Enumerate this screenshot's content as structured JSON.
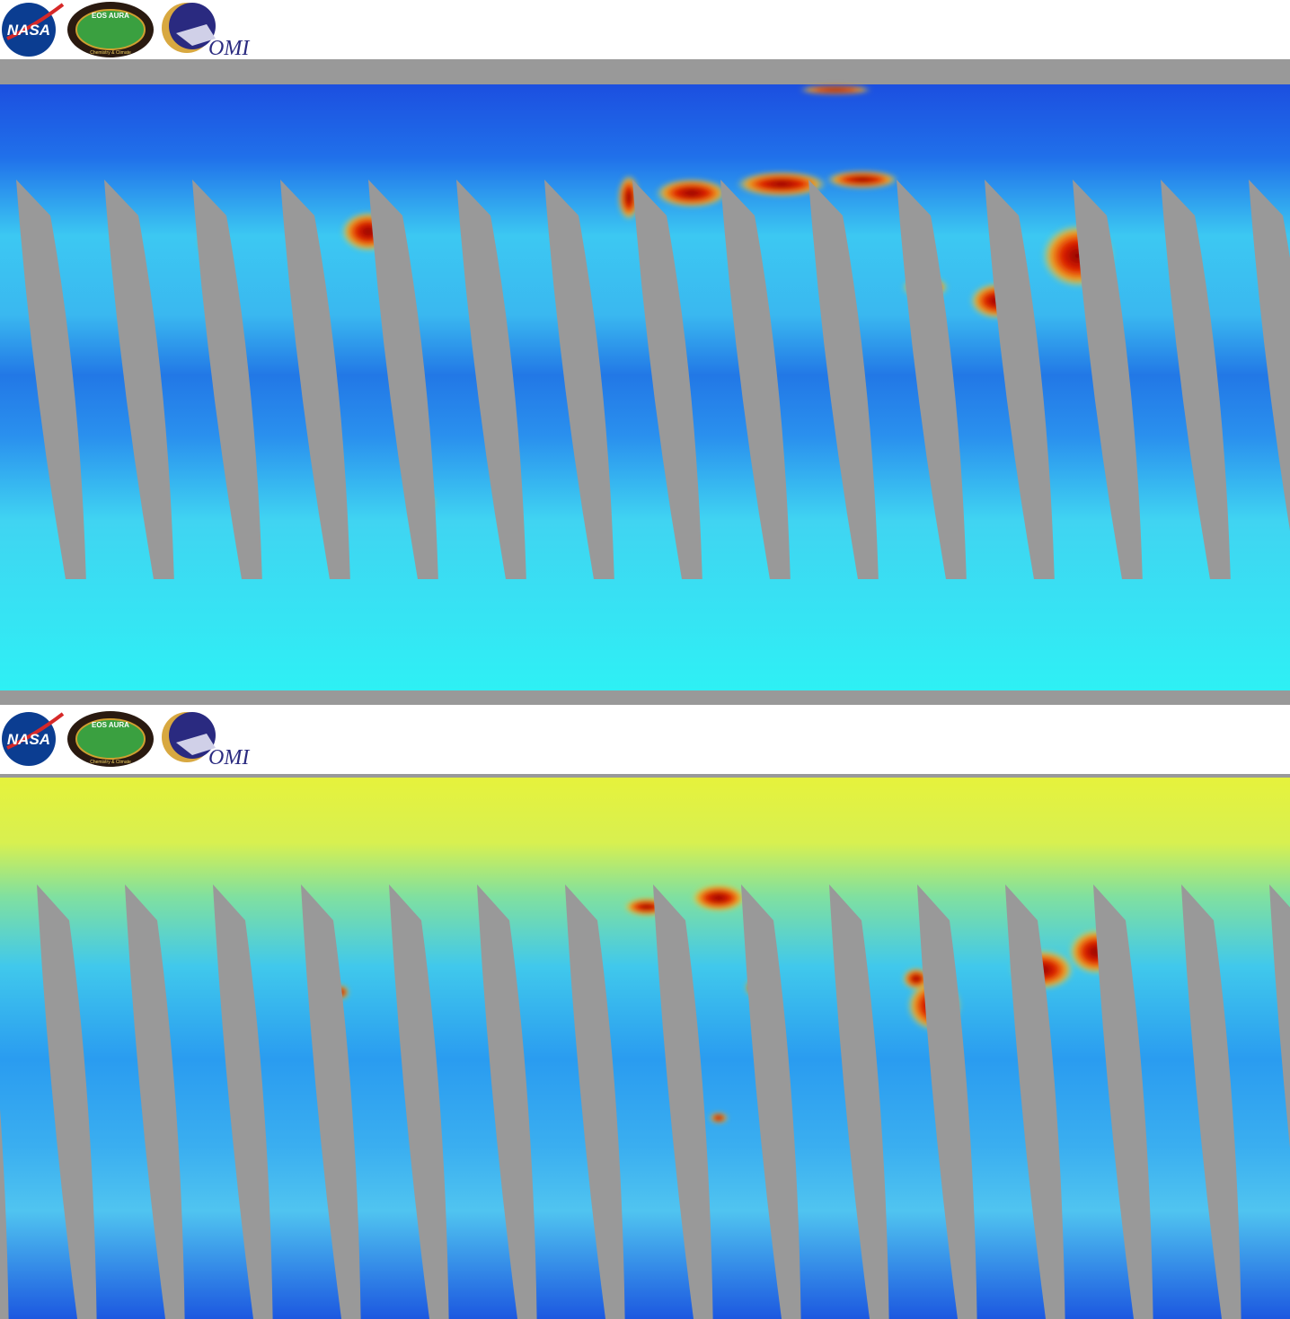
{
  "panels": [
    {
      "logos": {
        "nasa": "NASA",
        "aura": "EOS AURA",
        "aura_subtitle": "Chemistry & Climate",
        "omi": "OMI"
      }
    },
    {
      "logos": {
        "nasa": "NASA",
        "aura": "EOS AURA",
        "aura_subtitle": "Chemistry & Climate",
        "omi": "OMI"
      }
    }
  ]
}
